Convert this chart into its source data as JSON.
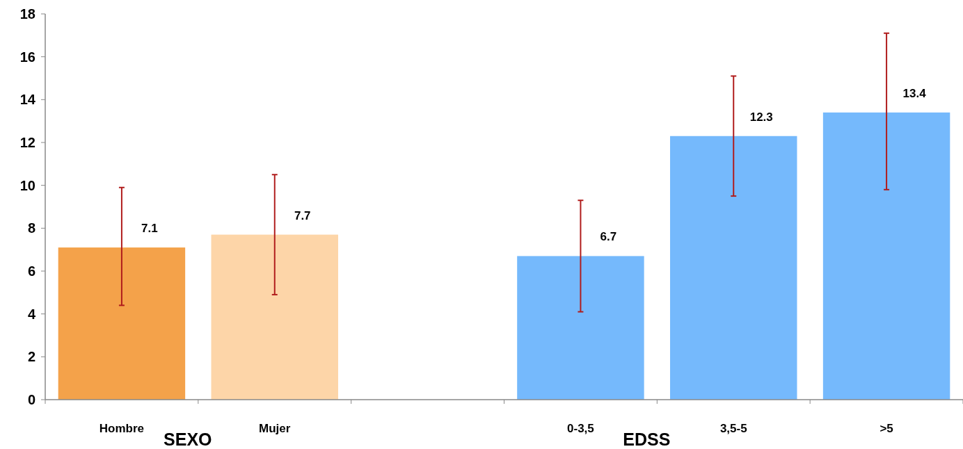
{
  "chart_data": {
    "type": "bar",
    "categories": [
      "Hombre",
      "Mujer",
      null,
      "0-3,5",
      "3,5-5",
      ">5"
    ],
    "values": [
      7.1,
      7.7,
      null,
      6.7,
      12.3,
      13.4
    ],
    "colors": [
      "#f4a24a",
      "#fdd5a8",
      null,
      "#75b9fc",
      "#75b9fc",
      "#75b9fc"
    ],
    "errors": [
      [
        4.4,
        9.9
      ],
      [
        4.9,
        10.5
      ],
      null,
      [
        4.1,
        9.3
      ],
      [
        9.5,
        15.1
      ],
      [
        9.8,
        17.1
      ]
    ],
    "ylim": [
      0,
      18
    ],
    "yticks": [
      0,
      2,
      4,
      6,
      8,
      10,
      12,
      14,
      16,
      18
    ],
    "grid": false,
    "data_labels": true,
    "annotations": [
      "SEXO",
      "EDSS"
    ]
  }
}
